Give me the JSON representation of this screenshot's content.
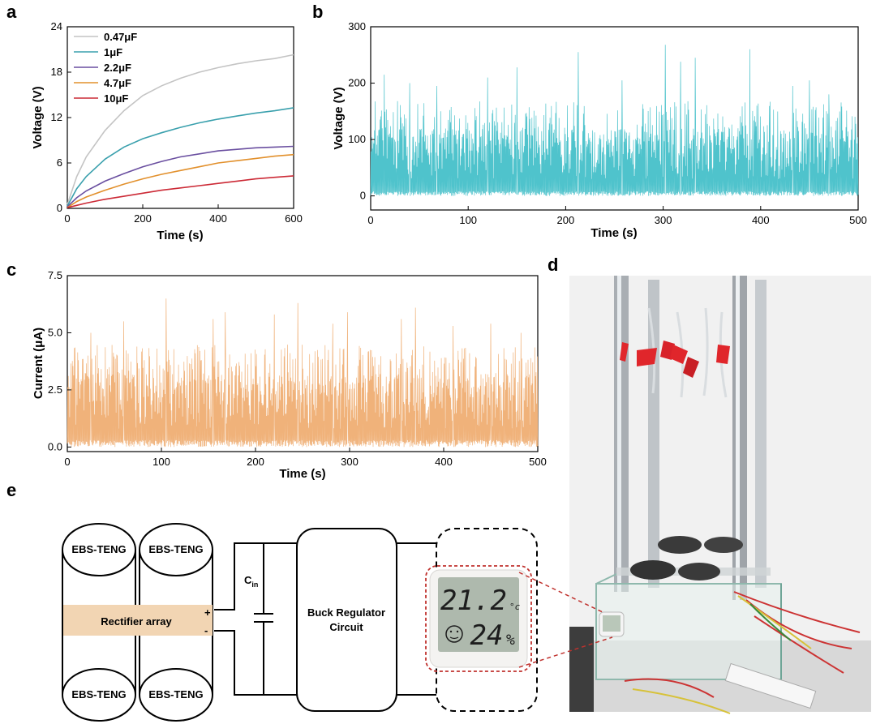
{
  "panel_letters": {
    "a": "a",
    "b": "b",
    "c": "c",
    "d": "d",
    "e": "e"
  },
  "chart_data": [
    {
      "panel": "a",
      "type": "line",
      "xlabel": "Time (s)",
      "ylabel": "Voltage (V)",
      "xlim": [
        0,
        600
      ],
      "ylim": [
        0,
        24
      ],
      "xticks": [
        "0",
        "200",
        "400",
        "600"
      ],
      "yticks": [
        "0",
        "6",
        "12",
        "18",
        "24"
      ],
      "legend_position": "top-left",
      "series": [
        {
          "name": "0.47μF",
          "color": "#c4c4c4",
          "x": [
            0,
            25,
            50,
            100,
            150,
            200,
            250,
            300,
            350,
            400,
            450,
            500,
            550,
            600
          ],
          "values": [
            0.5,
            4.2,
            6.8,
            10.3,
            12.9,
            14.9,
            16.2,
            17.2,
            18.0,
            18.6,
            19.1,
            19.5,
            19.8,
            20.3
          ]
        },
        {
          "name": "1μF",
          "color": "#3aa0ad",
          "x": [
            0,
            25,
            50,
            100,
            150,
            200,
            250,
            300,
            350,
            400,
            450,
            500,
            550,
            600
          ],
          "values": [
            0.3,
            2.6,
            4.2,
            6.5,
            8.1,
            9.2,
            10.0,
            10.7,
            11.3,
            11.8,
            12.2,
            12.6,
            12.9,
            13.3
          ]
        },
        {
          "name": "2.2μF",
          "color": "#6a4fa0",
          "x": [
            0,
            25,
            50,
            100,
            150,
            200,
            250,
            300,
            350,
            400,
            450,
            500,
            550,
            600
          ],
          "values": [
            0.2,
            1.4,
            2.3,
            3.6,
            4.6,
            5.5,
            6.2,
            6.8,
            7.2,
            7.6,
            7.8,
            8.0,
            8.1,
            8.2
          ]
        },
        {
          "name": "4.7μF",
          "color": "#e2902c",
          "x": [
            0,
            25,
            50,
            100,
            150,
            200,
            250,
            300,
            350,
            400,
            450,
            500,
            550,
            600
          ],
          "values": [
            0.1,
            0.9,
            1.5,
            2.4,
            3.2,
            3.9,
            4.5,
            5.0,
            5.5,
            6.0,
            6.3,
            6.6,
            6.9,
            7.1
          ]
        },
        {
          "name": "10μF",
          "color": "#cc2a36",
          "x": [
            0,
            25,
            50,
            100,
            150,
            200,
            250,
            300,
            350,
            400,
            450,
            500,
            550,
            600
          ],
          "values": [
            0.1,
            0.4,
            0.7,
            1.2,
            1.6,
            2.0,
            2.4,
            2.7,
            3.0,
            3.3,
            3.6,
            3.9,
            4.1,
            4.3
          ]
        }
      ]
    },
    {
      "panel": "b",
      "type": "line",
      "xlabel": "Time (s)",
      "ylabel": "Voltage (V)",
      "xlim": [
        0,
        500
      ],
      "ylim": [
        -25,
        300
      ],
      "xticks": [
        "0",
        "100",
        "200",
        "300",
        "400",
        "500"
      ],
      "yticks": [
        "0",
        "100",
        "200",
        "300"
      ],
      "color": "#4fc3cc",
      "description": "dense random spiking voltage trace, baseline near 0 V, peaks 100–270 V",
      "peaks": {
        "x": [
          14,
          40,
          68,
          120,
          150,
          213,
          258,
          302,
          318,
          333,
          389,
          433,
          450,
          470
        ],
        "values": [
          215,
          200,
          195,
          210,
          228,
          255,
          205,
          268,
          238,
          245,
          260,
          195,
          205,
          180
        ]
      }
    },
    {
      "panel": "c",
      "type": "line",
      "xlabel": "Time (s)",
      "ylabel": "Current (μA)",
      "xlim": [
        0,
        500
      ],
      "ylim": [
        -0.2,
        7.5
      ],
      "xticks": [
        "0",
        "100",
        "200",
        "300",
        "400",
        "500"
      ],
      "yticks": [
        "0.0",
        "2.5",
        "5.0",
        "7.5"
      ],
      "color": "#f0b27a",
      "description": "dense random spiking current trace, baseline near 0 μA, peaks 4–6.5 μA",
      "peaks": {
        "x": [
          25,
          60,
          105,
          155,
          168,
          220,
          245,
          282,
          298,
          355,
          370,
          410,
          450,
          482
        ],
        "values": [
          5.0,
          5.5,
          6.5,
          5.6,
          5.9,
          5.8,
          6.3,
          5.4,
          5.9,
          5.6,
          6.1,
          5.3,
          5.4,
          5.0
        ]
      }
    }
  ],
  "circuit": {
    "teng_label": "EBS-TENG",
    "rectifier_label": "Rectifier array",
    "plus_sign": "+",
    "minus_sign": "-",
    "cap_label": "C",
    "cap_subscript": "in",
    "regulator_line1": "Buck Regulator",
    "regulator_line2": "Circuit"
  },
  "hygrometer": {
    "temperature": "21.2",
    "temp_unit": "°c",
    "humidity": "24",
    "hum_unit": "%"
  },
  "colors": {
    "panel_b_trace": "#4fc3cc",
    "panel_c_trace": "#f0b27a",
    "rectifier_fill": "#f2d5b3",
    "highlight_red": "#c0322e"
  }
}
